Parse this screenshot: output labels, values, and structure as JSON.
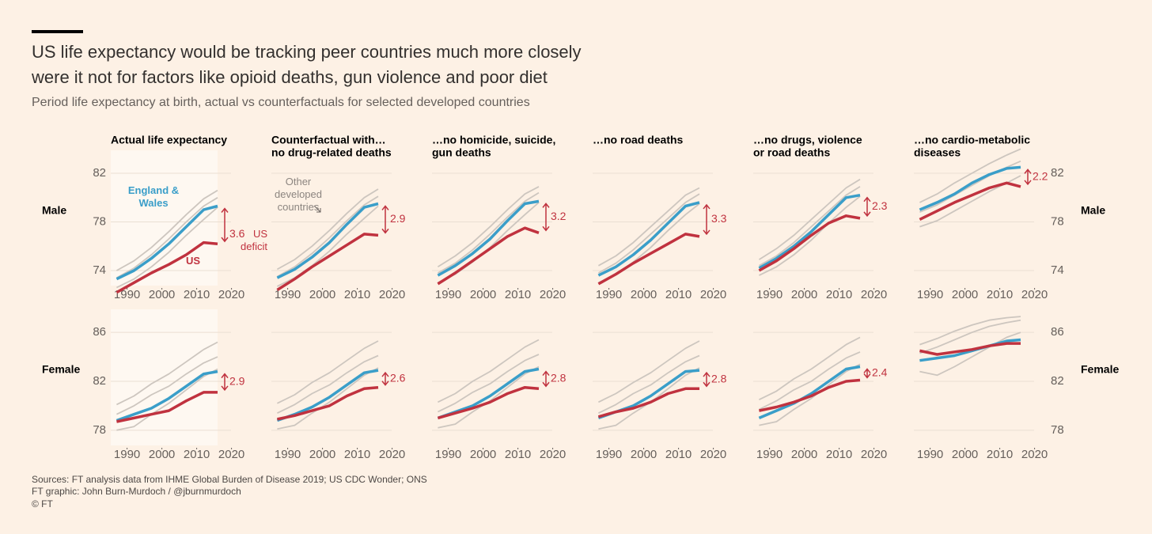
{
  "title": [
    "US life expectancy would be tracking peer countries much more closely",
    "were it not for factors like opioid deaths, gun violence and poor diet"
  ],
  "subtitle": "Period life expectancy at birth, actual vs counterfactuals for selected developed countries",
  "rows": [
    "Male",
    "Female"
  ],
  "footer": [
    "Sources: FT analysis data from IHME Global Burden of Disease 2019; US CDC Wonder; ONS",
    "FT graphic: John Burn-Murdoch / @jburnmurdoch",
    "© FT"
  ],
  "chart_data": [
    {
      "type": "line",
      "title": [
        "Actual life expectancy"
      ],
      "x": [
        1987,
        1992,
        1997,
        2002,
        2007,
        2012,
        2016
      ],
      "xlim": [
        1986,
        2021
      ],
      "xticks": [
        1990,
        2000,
        2010,
        2020
      ],
      "ylim": [
        72.5,
        83.5
      ],
      "yticks": [
        74,
        78,
        82
      ],
      "gap": 3.6,
      "note": "US deficit",
      "series": [
        {
          "color": "#cdc6bf",
          "values": [
            74.0,
            74.8,
            75.9,
            77.2,
            78.6,
            79.9,
            80.6
          ]
        },
        {
          "color": "#cdc6bf",
          "values": [
            73.4,
            74.2,
            75.3,
            76.6,
            78.0,
            79.3,
            80.0
          ]
        },
        {
          "color": "#cdc6bf",
          "values": [
            72.6,
            73.3,
            74.3,
            75.5,
            76.9,
            78.2,
            79.2
          ]
        },
        {
          "name": "England & Wales",
          "color": "#3a9ec9",
          "values": [
            73.3,
            74.0,
            75.0,
            76.2,
            77.6,
            79.0,
            79.3
          ]
        },
        {
          "name": "US",
          "color": "#c0323f",
          "values": [
            72.2,
            73.0,
            73.8,
            74.5,
            75.3,
            76.3,
            76.2
          ]
        }
      ]
    },
    {
      "type": "line",
      "title": [
        "Counterfactual with…",
        "no drug-related deaths"
      ],
      "x": [
        1987,
        1992,
        1997,
        2002,
        2007,
        2012,
        2016
      ],
      "xlim": [
        1986,
        2021
      ],
      "xticks": [
        1990,
        2000,
        2010,
        2020
      ],
      "ylim": [
        72.5,
        83.5
      ],
      "yticks": [
        74,
        78,
        82
      ],
      "gap": 2.9,
      "note": "Other developed countries",
      "series": [
        {
          "color": "#cdc6bf",
          "values": [
            74.1,
            74.9,
            76.0,
            77.3,
            78.7,
            80.0,
            80.7
          ]
        },
        {
          "color": "#cdc6bf",
          "values": [
            73.5,
            74.3,
            75.4,
            76.7,
            78.1,
            79.4,
            80.1
          ]
        },
        {
          "color": "#cdc6bf",
          "values": [
            72.7,
            73.4,
            74.4,
            75.6,
            77.0,
            78.3,
            79.3
          ]
        },
        {
          "color": "#3a9ec9",
          "values": [
            73.4,
            74.1,
            75.1,
            76.3,
            77.8,
            79.2,
            79.5
          ]
        },
        {
          "color": "#c0323f",
          "values": [
            72.4,
            73.3,
            74.3,
            75.2,
            76.1,
            77.0,
            76.9
          ]
        }
      ]
    },
    {
      "type": "line",
      "title": [
        "…no homicide, suicide,",
        "gun deaths"
      ],
      "x": [
        1987,
        1992,
        1997,
        2002,
        2007,
        2012,
        2016
      ],
      "xlim": [
        1986,
        2021
      ],
      "xticks": [
        1990,
        2000,
        2010,
        2020
      ],
      "ylim": [
        72.5,
        83.5
      ],
      "yticks": [
        74,
        78,
        82
      ],
      "gap": 3.2,
      "series": [
        {
          "color": "#cdc6bf",
          "values": [
            74.3,
            75.2,
            76.3,
            77.6,
            79.0,
            80.3,
            80.9
          ]
        },
        {
          "color": "#cdc6bf",
          "values": [
            73.8,
            74.6,
            75.7,
            77.0,
            78.4,
            79.7,
            80.4
          ]
        },
        {
          "color": "#cdc6bf",
          "values": [
            73.0,
            73.7,
            74.7,
            75.9,
            77.3,
            78.6,
            79.6
          ]
        },
        {
          "color": "#3a9ec9",
          "values": [
            73.6,
            74.4,
            75.4,
            76.6,
            78.1,
            79.5,
            79.7
          ]
        },
        {
          "color": "#c0323f",
          "values": [
            72.9,
            73.8,
            74.8,
            75.8,
            76.8,
            77.5,
            77.1
          ]
        }
      ]
    },
    {
      "type": "line",
      "title": [
        "…no road deaths"
      ],
      "x": [
        1987,
        1992,
        1997,
        2002,
        2007,
        2012,
        2016
      ],
      "xlim": [
        1986,
        2021
      ],
      "xticks": [
        1990,
        2000,
        2010,
        2020
      ],
      "ylim": [
        72.5,
        83.5
      ],
      "yticks": [
        74,
        78,
        82
      ],
      "gap": 3.3,
      "series": [
        {
          "color": "#cdc6bf",
          "values": [
            74.4,
            75.2,
            76.3,
            77.6,
            78.9,
            80.2,
            80.8
          ]
        },
        {
          "color": "#cdc6bf",
          "values": [
            73.8,
            74.6,
            75.7,
            77.0,
            78.3,
            79.6,
            80.3
          ]
        },
        {
          "color": "#cdc6bf",
          "values": [
            73.0,
            73.7,
            74.7,
            75.9,
            77.3,
            78.6,
            79.5
          ]
        },
        {
          "color": "#3a9ec9",
          "values": [
            73.6,
            74.3,
            75.3,
            76.5,
            77.9,
            79.3,
            79.6
          ]
        },
        {
          "color": "#c0323f",
          "values": [
            72.9,
            73.7,
            74.6,
            75.4,
            76.2,
            77.0,
            76.8
          ]
        }
      ]
    },
    {
      "type": "line",
      "title": [
        "…no drugs, violence",
        "or road deaths"
      ],
      "x": [
        1987,
        1992,
        1997,
        2002,
        2007,
        2012,
        2016
      ],
      "xlim": [
        1986,
        2021
      ],
      "xticks": [
        1990,
        2000,
        2010,
        2020
      ],
      "ylim": [
        72.5,
        83.5
      ],
      "yticks": [
        74,
        78,
        82
      ],
      "gap": 2.3,
      "series": [
        {
          "color": "#cdc6bf",
          "values": [
            74.9,
            75.8,
            76.9,
            78.2,
            79.5,
            80.8,
            81.5
          ]
        },
        {
          "color": "#cdc6bf",
          "values": [
            74.4,
            75.2,
            76.3,
            77.6,
            78.9,
            80.2,
            80.9
          ]
        },
        {
          "color": "#cdc6bf",
          "values": [
            73.6,
            74.3,
            75.3,
            76.5,
            77.9,
            79.2,
            80.1
          ]
        },
        {
          "color": "#3a9ec9",
          "values": [
            74.2,
            75.0,
            76.0,
            77.2,
            78.6,
            80.0,
            80.2
          ]
        },
        {
          "color": "#c0323f",
          "values": [
            74.0,
            74.8,
            75.8,
            76.9,
            77.9,
            78.5,
            78.3
          ]
        }
      ]
    },
    {
      "type": "line",
      "title": [
        "…no cardio-metabolic",
        "diseases"
      ],
      "x": [
        1987,
        1992,
        1997,
        2002,
        2007,
        2012,
        2016
      ],
      "xlim": [
        1986,
        2021
      ],
      "xticks": [
        1990,
        2000,
        2010,
        2020
      ],
      "ylim": [
        72.5,
        83.5
      ],
      "yticks": [
        74,
        78,
        82
      ],
      "gap": 2.2,
      "series": [
        {
          "color": "#cdc6bf",
          "values": [
            79.6,
            80.3,
            81.2,
            82.0,
            82.8,
            83.5,
            84.0
          ]
        },
        {
          "color": "#cdc6bf",
          "values": [
            78.8,
            79.4,
            80.2,
            81.0,
            81.8,
            82.5,
            83.0
          ]
        },
        {
          "color": "#cdc6bf",
          "values": [
            77.6,
            78.1,
            78.9,
            79.7,
            80.5,
            81.2,
            81.8
          ]
        },
        {
          "color": "#3a9ec9",
          "values": [
            79.0,
            79.6,
            80.3,
            81.2,
            81.9,
            82.4,
            82.5
          ]
        },
        {
          "color": "#c0323f",
          "values": [
            78.2,
            78.9,
            79.6,
            80.2,
            80.8,
            81.2,
            80.9
          ]
        }
      ]
    },
    {
      "type": "line",
      "x": [
        1987,
        1992,
        1997,
        2002,
        2007,
        2012,
        2016
      ],
      "xlim": [
        1986,
        2021
      ],
      "xticks": [
        1990,
        2000,
        2010,
        2020
      ],
      "ylim": [
        76.5,
        87.5
      ],
      "yticks": [
        78,
        82,
        86
      ],
      "gap": 2.9,
      "series": [
        {
          "color": "#cdc6bf",
          "values": [
            80.1,
            80.8,
            81.8,
            82.6,
            83.6,
            84.6,
            85.2
          ]
        },
        {
          "color": "#cdc6bf",
          "values": [
            79.3,
            80.0,
            80.9,
            81.6,
            82.6,
            83.5,
            84.0
          ]
        },
        {
          "color": "#cdc6bf",
          "values": [
            78.0,
            78.3,
            79.3,
            80.2,
            81.3,
            82.4,
            83.0
          ]
        },
        {
          "color": "#3a9ec9",
          "values": [
            78.8,
            79.3,
            79.8,
            80.6,
            81.6,
            82.6,
            82.8
          ]
        },
        {
          "color": "#c0323f",
          "values": [
            78.7,
            79.0,
            79.3,
            79.6,
            80.4,
            81.1,
            81.1
          ]
        }
      ]
    },
    {
      "type": "line",
      "x": [
        1987,
        1992,
        1997,
        2002,
        2007,
        2012,
        2016
      ],
      "xlim": [
        1986,
        2021
      ],
      "xticks": [
        1990,
        2000,
        2010,
        2020
      ],
      "ylim": [
        76.5,
        87.5
      ],
      "yticks": [
        78,
        82,
        86
      ],
      "gap": 2.6,
      "series": [
        {
          "color": "#cdc6bf",
          "values": [
            80.2,
            80.9,
            81.9,
            82.7,
            83.7,
            84.7,
            85.3
          ]
        },
        {
          "color": "#cdc6bf",
          "values": [
            79.4,
            80.1,
            81.0,
            81.7,
            82.7,
            83.6,
            84.1
          ]
        },
        {
          "color": "#cdc6bf",
          "values": [
            78.1,
            78.4,
            79.4,
            80.3,
            81.4,
            82.5,
            83.1
          ]
        },
        {
          "color": "#3a9ec9",
          "values": [
            78.8,
            79.3,
            79.9,
            80.7,
            81.7,
            82.7,
            82.9
          ]
        },
        {
          "color": "#c0323f",
          "values": [
            78.9,
            79.2,
            79.6,
            80.0,
            80.8,
            81.4,
            81.5
          ]
        }
      ]
    },
    {
      "type": "line",
      "x": [
        1987,
        1992,
        1997,
        2002,
        2007,
        2012,
        2016
      ],
      "xlim": [
        1986,
        2021
      ],
      "xticks": [
        1990,
        2000,
        2010,
        2020
      ],
      "ylim": [
        76.5,
        87.5
      ],
      "yticks": [
        78,
        82,
        86
      ],
      "gap": 2.8,
      "series": [
        {
          "color": "#cdc6bf",
          "values": [
            80.3,
            81.0,
            82.0,
            82.8,
            83.8,
            84.8,
            85.4
          ]
        },
        {
          "color": "#cdc6bf",
          "values": [
            79.5,
            80.2,
            81.1,
            81.8,
            82.8,
            83.7,
            84.2
          ]
        },
        {
          "color": "#cdc6bf",
          "values": [
            78.2,
            78.5,
            79.5,
            80.4,
            81.5,
            82.6,
            83.2
          ]
        },
        {
          "color": "#3a9ec9",
          "values": [
            79.0,
            79.5,
            80.0,
            80.8,
            81.8,
            82.8,
            83.0
          ]
        },
        {
          "color": "#c0323f",
          "values": [
            79.0,
            79.4,
            79.8,
            80.3,
            81.0,
            81.5,
            81.4
          ]
        }
      ]
    },
    {
      "type": "line",
      "x": [
        1987,
        1992,
        1997,
        2002,
        2007,
        2012,
        2016
      ],
      "xlim": [
        1986,
        2021
      ],
      "xticks": [
        1990,
        2000,
        2010,
        2020
      ],
      "ylim": [
        76.5,
        87.5
      ],
      "yticks": [
        78,
        82,
        86
      ],
      "gap": 2.8,
      "series": [
        {
          "color": "#cdc6bf",
          "values": [
            80.3,
            81.0,
            81.9,
            82.7,
            83.7,
            84.7,
            85.3
          ]
        },
        {
          "color": "#cdc6bf",
          "values": [
            79.4,
            80.1,
            81.0,
            81.7,
            82.7,
            83.6,
            84.1
          ]
        },
        {
          "color": "#cdc6bf",
          "values": [
            78.1,
            78.4,
            79.4,
            80.3,
            81.4,
            82.5,
            83.1
          ]
        },
        {
          "color": "#3a9ec9",
          "values": [
            79.0,
            79.5,
            80.0,
            80.8,
            81.8,
            82.8,
            82.9
          ]
        },
        {
          "color": "#c0323f",
          "values": [
            79.1,
            79.5,
            79.8,
            80.3,
            81.0,
            81.4,
            81.4
          ]
        }
      ]
    },
    {
      "type": "line",
      "x": [
        1987,
        1992,
        1997,
        2002,
        2007,
        2012,
        2016
      ],
      "xlim": [
        1986,
        2021
      ],
      "xticks": [
        1990,
        2000,
        2010,
        2020
      ],
      "ylim": [
        76.5,
        87.5
      ],
      "yticks": [
        78,
        82,
        86
      ],
      "gap": 2.4,
      "series": [
        {
          "color": "#cdc6bf",
          "values": [
            80.5,
            81.2,
            82.2,
            83.0,
            84.0,
            85.0,
            85.6
          ]
        },
        {
          "color": "#cdc6bf",
          "values": [
            79.7,
            80.4,
            81.3,
            82.0,
            83.0,
            83.9,
            84.4
          ]
        },
        {
          "color": "#cdc6bf",
          "values": [
            78.4,
            78.7,
            79.7,
            80.6,
            81.7,
            82.8,
            83.4
          ]
        },
        {
          "color": "#3a9ec9",
          "values": [
            79.0,
            79.6,
            80.2,
            81.0,
            82.0,
            83.0,
            83.2
          ]
        },
        {
          "color": "#c0323f",
          "values": [
            79.6,
            79.9,
            80.3,
            80.8,
            81.5,
            82.0,
            82.1
          ]
        }
      ]
    },
    {
      "type": "line",
      "x": [
        1987,
        1992,
        1997,
        2002,
        2007,
        2012,
        2016
      ],
      "xlim": [
        1986,
        2021
      ],
      "xticks": [
        1990,
        2000,
        2010,
        2020
      ],
      "ylim": [
        76.5,
        87.5
      ],
      "yticks": [
        78,
        82,
        86
      ],
      "series": [
        {
          "color": "#cdc6bf",
          "values": [
            85.0,
            85.5,
            86.1,
            86.6,
            87.0,
            87.2,
            87.3
          ]
        },
        {
          "color": "#cdc6bf",
          "values": [
            84.3,
            84.8,
            85.4,
            86.0,
            86.5,
            86.8,
            87.0
          ]
        },
        {
          "color": "#cdc6bf",
          "values": [
            82.8,
            82.5,
            83.2,
            84.0,
            84.8,
            85.6,
            86.0
          ]
        },
        {
          "color": "#3a9ec9",
          "values": [
            83.7,
            83.9,
            84.1,
            84.5,
            84.9,
            85.3,
            85.4
          ]
        },
        {
          "color": "#c0323f",
          "values": [
            84.5,
            84.2,
            84.4,
            84.6,
            84.9,
            85.1,
            85.1
          ]
        }
      ]
    }
  ]
}
